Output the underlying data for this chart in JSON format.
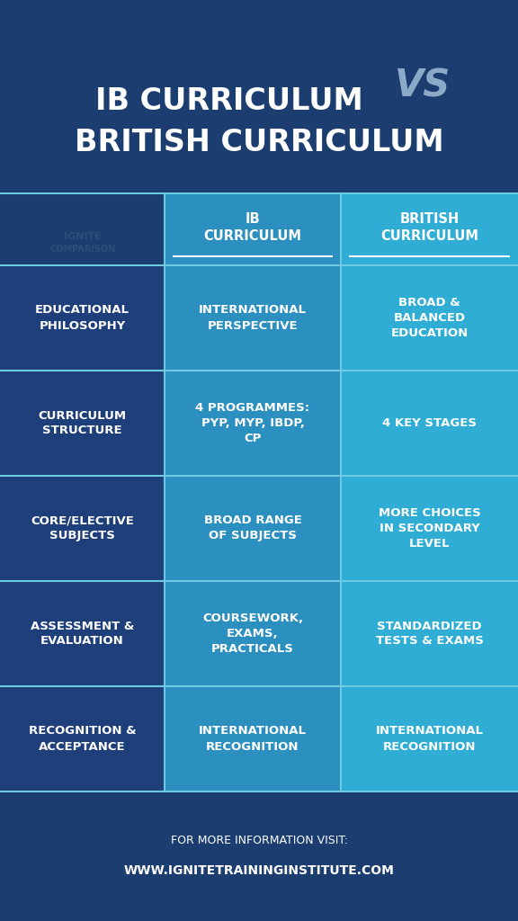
{
  "bg_dark": "#1b3d6f",
  "col1_bg": "#1e3f7a",
  "col2_bg": "#2b8fc0",
  "col3_bg": "#2fadd4",
  "separator_color": "#6dcae0",
  "title_line1": "IB CURRICULUM",
  "title_vs": "VS",
  "title_line2": "BRITISH CURRICULUM",
  "title_color": "#ffffff",
  "vs_color": "#8aaac8",
  "header_col2": "IB\nCURRICULUM",
  "header_col3": "BRITISH\nCURRICULUM",
  "header_underline_color": "#ffffff",
  "footer_line1": "FOR MORE INFORMATION VISIT:",
  "footer_line2": "WWW.IGNITETRAININGINSTITUTE.COM",
  "footer_color": "#ffffff",
  "watermark_text": "IGNITE COMPARISON",
  "watermark_color": "#2a507a",
  "rows": [
    {
      "col1": "EDUCATIONAL\nPHILOSOPHY",
      "col2": "INTERNATIONAL\nPERSPECTIVE",
      "col3": "BROAD &\nBALANCED\nEDUCATION"
    },
    {
      "col1": "CURRICULUM\nSTRUCTURE",
      "col2": "4 PROGRAMMES:\nPYP, MYP, IBDP,\nCP",
      "col3": "4 KEY STAGES"
    },
    {
      "col1": "CORE/ELECTIVE\nSUBJECTS",
      "col2": "BROAD RANGE\nOF SUBJECTS",
      "col3": "MORE CHOICES\nIN SECONDARY\nLEVEL"
    },
    {
      "col1": "ASSESSMENT &\nEVALUATION",
      "col2": "COURSEWORK,\nEXAMS,\nPRACTICALS",
      "col3": "STANDARDIZED\nTESTS & EXAMS"
    },
    {
      "col1": "RECOGNITION &\nACCEPTANCE",
      "col2": "INTERNATIONAL\nRECOGNITION",
      "col3": "INTERNATIONAL\nRECOGNITION"
    }
  ],
  "cell_text_color": "#ffffff",
  "cell_font_size": 9.5,
  "header_font_size": 10.5,
  "title_font_size": 24,
  "vs_font_size": 30
}
